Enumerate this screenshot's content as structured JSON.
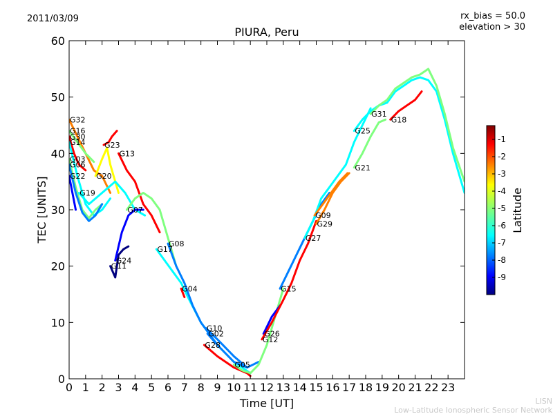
{
  "date_label": "2011/03/09",
  "rx_bias_label": "rx_bias = 50.0",
  "elevation_label": "elevation > 30",
  "credit_short": "LISN",
  "credit_long": "Low-Latitude Ionospheric Sensor Network",
  "colors": {
    "colormap": [
      "#00007f",
      "#0000ff",
      "#007fff",
      "#00ffff",
      "#7fff7f",
      "#ffff00",
      "#ff7f00",
      "#ff0000",
      "#7f0000"
    ]
  },
  "chart_data": {
    "type": "scatter",
    "title": "PIURA, Peru",
    "xlabel": "Time [UT]",
    "ylabel": "TEC [UNITS]",
    "xlim": [
      0,
      24
    ],
    "ylim": [
      0,
      60
    ],
    "x_ticks": [
      "0",
      "1",
      "2",
      "3",
      "4",
      "5",
      "6",
      "7",
      "8",
      "9",
      "10",
      "11",
      "12",
      "13",
      "14",
      "15",
      "16",
      "17",
      "18",
      "19",
      "20",
      "21",
      "22",
      "23"
    ],
    "y_ticks": [
      "0",
      "10",
      "20",
      "30",
      "40",
      "50",
      "60"
    ],
    "grid": false,
    "colorbar": {
      "label": "Latitude",
      "range": [
        -10,
        -0.2
      ],
      "ticks": [
        "-1",
        "-2",
        "-3",
        "-4",
        "-5",
        "-6",
        "-7",
        "-8",
        "-9"
      ]
    },
    "series": [
      {
        "name": "G32",
        "points": [
          [
            0,
            46
          ],
          [
            0.5,
            43
          ],
          [
            1,
            40
          ],
          [
            1.5,
            37
          ],
          [
            2,
            36
          ],
          [
            2.5,
            33
          ]
        ],
        "lat": -3
      },
      {
        "name": "G16",
        "points": [
          [
            0,
            44
          ],
          [
            0.5,
            42
          ],
          [
            1,
            40
          ],
          [
            1.5,
            38.5
          ]
        ],
        "lat": -5
      },
      {
        "name": "G30",
        "points": [
          [
            0,
            43
          ],
          [
            0.3,
            40
          ],
          [
            0.6,
            38
          ],
          [
            1,
            37
          ]
        ],
        "lat": -1.5
      },
      {
        "name": "G14",
        "points": [
          [
            0,
            42
          ],
          [
            0.5,
            36
          ],
          [
            1,
            31
          ],
          [
            1.5,
            29
          ],
          [
            2,
            30
          ],
          [
            2.5,
            32
          ]
        ],
        "lat": -6
      },
      {
        "name": "G20",
        "points": [
          [
            1.6,
            36
          ],
          [
            2,
            39
          ],
          [
            2.3,
            41
          ],
          [
            2.5,
            38
          ],
          [
            2.7,
            36
          ],
          [
            3,
            33
          ]
        ],
        "lat": -4
      },
      {
        "name": "G23",
        "points": [
          [
            2.1,
            41.5
          ],
          [
            2.4,
            42
          ],
          [
            2.6,
            43
          ],
          [
            2.9,
            44
          ]
        ],
        "lat": -1
      },
      {
        "name": "G03",
        "points": [
          [
            0,
            39
          ],
          [
            0.4,
            34
          ],
          [
            0.8,
            30
          ],
          [
            1.2,
            28.5
          ],
          [
            1.6,
            30
          ],
          [
            2,
            31
          ]
        ],
        "lat": -5.5
      },
      {
        "name": "G06",
        "points": [
          [
            0,
            38
          ],
          [
            0.4,
            33
          ],
          [
            0.8,
            29.5
          ],
          [
            1.2,
            28
          ],
          [
            1.6,
            29
          ],
          [
            2,
            31
          ]
        ],
        "lat": -8
      },
      {
        "name": "G22",
        "points": [
          [
            0,
            36
          ],
          [
            0.2,
            33
          ],
          [
            0.4,
            30
          ]
        ],
        "lat": -9
      },
      {
        "name": "G19",
        "points": [
          [
            0.6,
            33
          ],
          [
            1.2,
            31
          ],
          [
            2,
            33
          ],
          [
            2.8,
            35
          ],
          [
            3.4,
            33
          ],
          [
            4,
            30
          ],
          [
            4.6,
            29
          ]
        ],
        "lat": -6.5
      },
      {
        "name": "G13",
        "points": [
          [
            3,
            40
          ],
          [
            3.5,
            37
          ],
          [
            4,
            35
          ],
          [
            4.5,
            31
          ],
          [
            5,
            29
          ],
          [
            5.5,
            26
          ]
        ],
        "lat": -2
      },
      {
        "name": "G07",
        "points": [
          [
            3.5,
            30
          ],
          [
            4,
            32
          ],
          [
            4.5,
            33
          ],
          [
            5,
            32
          ],
          [
            5.5,
            30
          ],
          [
            6,
            25
          ],
          [
            6.5,
            20
          ]
        ],
        "lat": -5
      },
      {
        "name": "G17",
        "points": [
          [
            5.3,
            23
          ],
          [
            5.8,
            21
          ],
          [
            6.3,
            19
          ],
          [
            6.8,
            17
          ],
          [
            7.3,
            14
          ],
          [
            8,
            10
          ],
          [
            9,
            6
          ],
          [
            10,
            3
          ],
          [
            11,
            1
          ]
        ],
        "lat": -6
      },
      {
        "name": "G08",
        "points": [
          [
            6,
            24
          ],
          [
            6.5,
            20
          ],
          [
            7,
            17
          ],
          [
            7.5,
            13
          ],
          [
            8,
            10
          ],
          [
            8.5,
            8
          ],
          [
            9,
            6
          ]
        ],
        "lat": -7
      },
      {
        "name": "G04",
        "points": [
          [
            6.8,
            16
          ],
          [
            7,
            14.5
          ]
        ],
        "lat": -1
      },
      {
        "name": "G11",
        "points": [
          [
            2.5,
            20
          ],
          [
            2.8,
            18
          ],
          [
            3,
            22
          ],
          [
            3.3,
            23
          ],
          [
            3.6,
            23.5
          ]
        ],
        "lat": -9.5
      },
      {
        "name": "G24",
        "points": [
          [
            2.8,
            21
          ],
          [
            3.2,
            26
          ],
          [
            3.6,
            29
          ],
          [
            4,
            30
          ],
          [
            4.5,
            30
          ]
        ],
        "lat": -8.5
      },
      {
        "name": "G10",
        "points": [
          [
            8.3,
            9
          ],
          [
            9,
            7
          ],
          [
            10,
            4
          ],
          [
            10.8,
            2
          ]
        ],
        "lat": -8
      },
      {
        "name": "G02",
        "points": [
          [
            8.4,
            8
          ],
          [
            9,
            6
          ],
          [
            10,
            3
          ],
          [
            10.8,
            2
          ],
          [
            11.5,
            3
          ]
        ],
        "lat": -7.5
      },
      {
        "name": "G28",
        "points": [
          [
            8.2,
            6
          ],
          [
            9,
            4
          ],
          [
            10,
            2
          ],
          [
            10.8,
            1
          ],
          [
            11,
            0.5
          ]
        ],
        "lat": -1.5
      },
      {
        "name": "G05",
        "points": [
          [
            10,
            2.5
          ],
          [
            10.5,
            1.5
          ],
          [
            11,
            1
          ],
          [
            11.5,
            2.5
          ],
          [
            12,
            6
          ],
          [
            12.5,
            11
          ],
          [
            13,
            16
          ]
        ],
        "lat": -5.5
      },
      {
        "name": "G26",
        "points": [
          [
            11.8,
            8
          ],
          [
            12.3,
            11
          ],
          [
            12.8,
            13
          ]
        ],
        "lat": -9
      },
      {
        "name": "G12",
        "points": [
          [
            11.7,
            7
          ],
          [
            12.3,
            10
          ],
          [
            13,
            14
          ],
          [
            13.5,
            17
          ],
          [
            14,
            21
          ],
          [
            14.5,
            24
          ],
          [
            15,
            28
          ]
        ],
        "lat": -2
      },
      {
        "name": "G15",
        "points": [
          [
            12.8,
            16
          ],
          [
            13.3,
            19
          ],
          [
            13.8,
            22
          ],
          [
            14.3,
            25
          ],
          [
            14.8,
            28
          ],
          [
            15.3,
            31
          ],
          [
            15.8,
            33
          ]
        ],
        "lat": -8
      },
      {
        "name": "G27",
        "points": [
          [
            14.3,
            25
          ],
          [
            14.8,
            28
          ],
          [
            15.3,
            32
          ],
          [
            15.8,
            34
          ],
          [
            16.3,
            36
          ],
          [
            16.8,
            38
          ],
          [
            17.3,
            42
          ],
          [
            17.8,
            45
          ],
          [
            18.3,
            48
          ]
        ],
        "lat": -6.5
      },
      {
        "name": "G09",
        "points": [
          [
            14.9,
            29
          ],
          [
            15.4,
            31
          ],
          [
            15.9,
            33
          ],
          [
            16.4,
            35
          ],
          [
            16.9,
            36.5
          ]
        ],
        "lat": -3
      },
      {
        "name": "G29",
        "points": [
          [
            15,
            27.5
          ],
          [
            15.5,
            30
          ],
          [
            16,
            33
          ],
          [
            16.5,
            35
          ],
          [
            17,
            36.5
          ]
        ],
        "lat": -2.5
      },
      {
        "name": "G21",
        "points": [
          [
            17.3,
            37.5
          ],
          [
            17.8,
            40
          ],
          [
            18.3,
            43
          ],
          [
            18.8,
            45.5
          ],
          [
            19.2,
            46
          ]
        ],
        "lat": -4.5
      },
      {
        "name": "G25",
        "points": [
          [
            17.3,
            44
          ],
          [
            17.8,
            46
          ],
          [
            18.3,
            47.5
          ],
          [
            18.8,
            48.5
          ],
          [
            19.3,
            49
          ],
          [
            19.8,
            51
          ],
          [
            20.3,
            52
          ],
          [
            20.8,
            53
          ],
          [
            21.3,
            53.5
          ],
          [
            21.8,
            53
          ],
          [
            22.3,
            51
          ],
          [
            22.8,
            46
          ],
          [
            23.3,
            40
          ],
          [
            24,
            33
          ]
        ],
        "lat": -6
      },
      {
        "name": "G31",
        "points": [
          [
            18.3,
            47
          ],
          [
            18.8,
            48.5
          ],
          [
            19.3,
            49.5
          ],
          [
            19.8,
            51.5
          ],
          [
            20.3,
            52.5
          ],
          [
            20.8,
            53.5
          ],
          [
            21.3,
            54
          ],
          [
            21.8,
            55
          ],
          [
            22.3,
            52
          ],
          [
            22.8,
            47
          ],
          [
            23.3,
            41
          ],
          [
            24,
            35
          ]
        ],
        "lat": -5
      },
      {
        "name": "G18",
        "points": [
          [
            19.5,
            46
          ],
          [
            20,
            47.5
          ],
          [
            20.5,
            48.5
          ],
          [
            21,
            49.5
          ],
          [
            21.4,
            51
          ]
        ],
        "lat": -1.5
      }
    ]
  }
}
